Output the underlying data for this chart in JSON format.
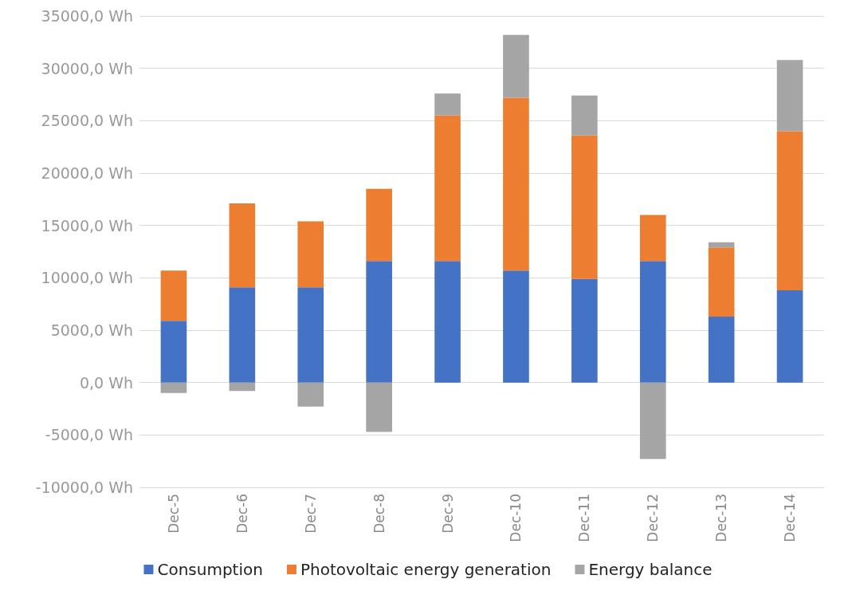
{
  "chart_data": {
    "type": "bar",
    "stacked": true,
    "categories": [
      "Dec-5",
      "Dec-6",
      "Dec-7",
      "Dec-8",
      "Dec-9",
      "Dec-10",
      "Dec-11",
      "Dec-12",
      "Dec-13",
      "Dec-14"
    ],
    "series": [
      {
        "name": "Consumption",
        "color": "#4472c4",
        "values": [
          5900,
          9100,
          9100,
          11600,
          11600,
          10700,
          9900,
          11600,
          6300,
          8800
        ]
      },
      {
        "name": "Photovoltaic energy generation",
        "color": "#ed7d31",
        "values": [
          4800,
          8000,
          6300,
          6900,
          13900,
          16500,
          13700,
          4400,
          6600,
          15200
        ]
      },
      {
        "name": "Energy balance",
        "color": "#a5a5a5",
        "values": [
          -1000,
          -800,
          -2300,
          -4700,
          2100,
          6000,
          3800,
          -7300,
          500,
          6800
        ]
      }
    ],
    "ylim": [
      -10000,
      35000
    ],
    "yticks": [
      {
        "value": -10000,
        "label": "-10000,0 Wh"
      },
      {
        "value": -5000,
        "label": "-5000,0 Wh"
      },
      {
        "value": 0,
        "label": "0,0 Wh"
      },
      {
        "value": 5000,
        "label": "5000,0 Wh"
      },
      {
        "value": 10000,
        "label": "10000,0 Wh"
      },
      {
        "value": 15000,
        "label": "15000,0 Wh"
      },
      {
        "value": 20000,
        "label": "20000,0 Wh"
      },
      {
        "value": 25000,
        "label": "25000,0 Wh"
      },
      {
        "value": 30000,
        "label": "30000,0 Wh"
      },
      {
        "value": 35000,
        "label": "35000,0 Wh"
      }
    ],
    "grid": "y",
    "legend": "bottom"
  }
}
